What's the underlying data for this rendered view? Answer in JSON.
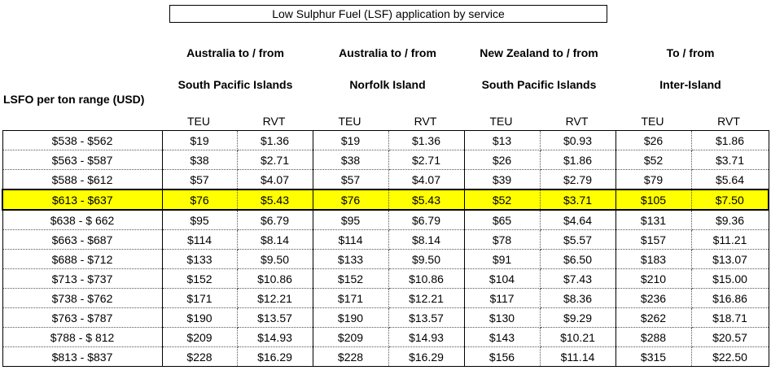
{
  "title": "Low Sulphur Fuel (LSF) application by service",
  "row_header": "LSFO per ton range (USD)",
  "groups": [
    {
      "line1": "Australia to / from",
      "line2": "South Pacific Islands"
    },
    {
      "line1": "Australia to / from",
      "line2": "Norfolk Island"
    },
    {
      "line1": "New Zealand to / from",
      "line2": "South Pacific Islands"
    },
    {
      "line1": "To / from",
      "line2": "Inter-Island"
    }
  ],
  "sub_headers": [
    "TEU",
    "RVT",
    "TEU",
    "RVT",
    "TEU",
    "RVT",
    "TEU",
    "RVT"
  ],
  "highlight_color": "#ffff00",
  "highlighted_row": "$613 - $637",
  "rows": [
    {
      "range": "$538 - $562",
      "values": [
        "$19",
        "$1.36",
        "$19",
        "$1.36",
        "$13",
        "$0.93",
        "$26",
        "$1.86"
      ]
    },
    {
      "range": "$563 - $587",
      "values": [
        "$38",
        "$2.71",
        "$38",
        "$2.71",
        "$26",
        "$1.86",
        "$52",
        "$3.71"
      ]
    },
    {
      "range": "$588 - $612",
      "values": [
        "$57",
        "$4.07",
        "$57",
        "$4.07",
        "$39",
        "$2.79",
        "$79",
        "$5.64"
      ]
    },
    {
      "range": "$613 - $637",
      "values": [
        "$76",
        "$5.43",
        "$76",
        "$5.43",
        "$52",
        "$3.71",
        "$105",
        "$7.50"
      ]
    },
    {
      "range": "$638 - $ 662",
      "values": [
        "$95",
        "$6.79",
        "$95",
        "$6.79",
        "$65",
        "$4.64",
        "$131",
        "$9.36"
      ]
    },
    {
      "range": "$663 - $687",
      "values": [
        "$114",
        "$8.14",
        "$114",
        "$8.14",
        "$78",
        "$5.57",
        "$157",
        "$11.21"
      ]
    },
    {
      "range": "$688 - $712",
      "values": [
        "$133",
        "$9.50",
        "$133",
        "$9.50",
        "$91",
        "$6.50",
        "$183",
        "$13.07"
      ]
    },
    {
      "range": "$713 - $737",
      "values": [
        "$152",
        "$10.86",
        "$152",
        "$10.86",
        "$104",
        "$7.43",
        "$210",
        "$15.00"
      ]
    },
    {
      "range": "$738 - $762",
      "values": [
        "$171",
        "$12.21",
        "$171",
        "$12.21",
        "$117",
        "$8.36",
        "$236",
        "$16.86"
      ]
    },
    {
      "range": "$763 - $787",
      "values": [
        "$190",
        "$13.57",
        "$190",
        "$13.57",
        "$130",
        "$9.29",
        "$262",
        "$18.71"
      ]
    },
    {
      "range": "$788 - $ 812",
      "values": [
        "$209",
        "$14.93",
        "$209",
        "$14.93",
        "$143",
        "$10.21",
        "$288",
        "$20.57"
      ]
    },
    {
      "range": "$813 - $837",
      "values": [
        "$228",
        "$16.29",
        "$228",
        "$16.29",
        "$156",
        "$11.14",
        "$315",
        "$22.50"
      ]
    }
  ]
}
